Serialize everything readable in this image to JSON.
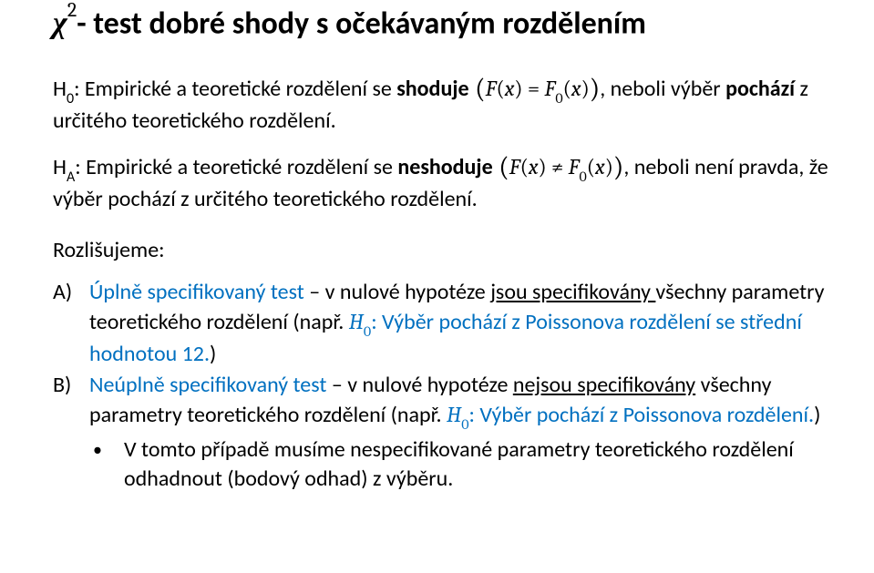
{
  "title": {
    "chi": "χ",
    "sup": "2",
    "rest": "- test dobré shody s očekávaným rozdělením"
  },
  "h0": {
    "label_pre": "H",
    "label_sub": "0",
    "text1": ": Empirické a teoretické rozdělení se ",
    "bold": "shoduje",
    "eq_open": " (",
    "F": "F",
    "x_open": "(",
    "x": "x",
    "x_close": ")",
    "eq_sign": " = ",
    "F0": "F",
    "F0sub": "0",
    "x2_open": "(",
    "x2": "x",
    "x2_close": ")",
    "eq_close": ")",
    "text2": ", neboli výběr ",
    "bold2": "pochází",
    "text3": " z určitého teoretického rozdělení."
  },
  "ha": {
    "label_pre": "H",
    "label_sub": "A",
    "text1": ": Empirické a teoretické rozdělení se ",
    "bold": "neshoduje",
    "eq_open": " (",
    "F": "F",
    "x_open": "(",
    "x": "x",
    "x_close": ")",
    "neq": " ≠ ",
    "F0": "F",
    "F0sub": "0",
    "x2_open": "(",
    "x2": "x",
    "x2_close": ")",
    "eq_close": ")",
    "text2": ", neboli není pravda, že výběr pochází z určitého teoretického rozdělení."
  },
  "rozlis": "Rozlišujeme:",
  "A": {
    "marker": "A)",
    "blue1": "Úplně specifikovaný test",
    "plain1": " – v nulové hypotéze ",
    "under1": "jsou specifikovány ",
    "plain2": "všechny parametry teoretického rozdělení (např. ",
    "H0": "H",
    "H0sub": "0",
    "blue2": ": Výběr pochází z Poissonova rozdělení se střední hodnotou 12.",
    "plain3": ")"
  },
  "B": {
    "marker": "B)",
    "blue1": "Neúplně specifikovaný test",
    "plain1": " – v nulové hypotéze ",
    "under1": "nejsou specifikovány",
    "plain2": " všechny parametry teoretického rozdělení (např. ",
    "H0": "H",
    "H0sub": "0",
    "blue2": ": Výběr pochází z Poissonova rozdělení.",
    "plain3": ")"
  },
  "bullet": {
    "mark": "•",
    "text": "V tomto případě musíme nespecifikované parametry teoretického rozdělení odhadnout (bodový odhad) z výběru."
  }
}
